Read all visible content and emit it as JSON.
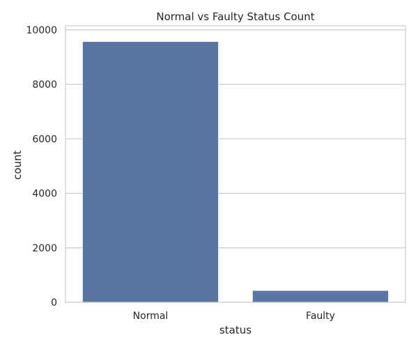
{
  "chart_data": {
    "type": "bar",
    "title": "Normal vs Faulty Status Count",
    "xlabel": "status",
    "ylabel": "count",
    "categories": [
      "Normal",
      "Faulty"
    ],
    "values": [
      9570,
      430
    ],
    "ylim": [
      0,
      10150
    ],
    "yticks": [
      0,
      2000,
      4000,
      6000,
      8000,
      10000
    ],
    "ytick_labels": [
      "0",
      "2000",
      "4000",
      "6000",
      "8000",
      "10000"
    ],
    "grid": true,
    "bar_color": "#5975a4",
    "grid_color": "#cccccc",
    "spine_color": "#cccccc",
    "text_color": "#262626"
  }
}
